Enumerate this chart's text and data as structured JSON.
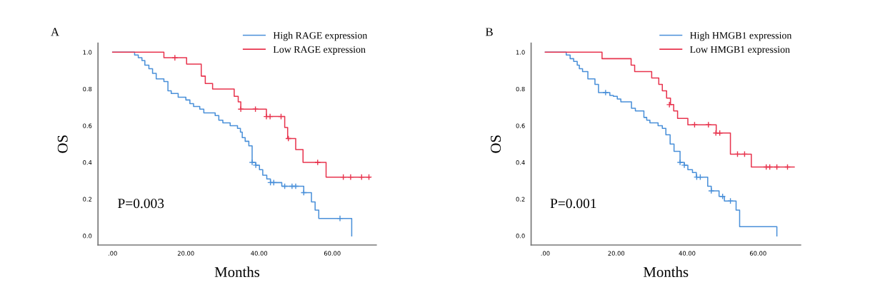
{
  "chart_data": [
    {
      "type": "step",
      "xlabel": "Months",
      "ylabel": "OS",
      "annotations": [
        "A",
        "P=0.003"
      ],
      "xlim": [
        -4,
        72
      ],
      "ylim": [
        -0.05,
        1.05
      ],
      "xticks": [
        {
          "value": 0,
          "label": ".00"
        },
        {
          "value": 20,
          "label": "20.00"
        },
        {
          "value": 40,
          "label": "40.00"
        },
        {
          "value": 60,
          "label": "60.00"
        }
      ],
      "yticks": [
        {
          "value": 0,
          "label": "0.0"
        },
        {
          "value": 0.2,
          "label": "0.2"
        },
        {
          "value": 0.4,
          "label": "0.4"
        },
        {
          "value": 0.6,
          "label": "0.6"
        },
        {
          "value": 0.8,
          "label": "0.8"
        },
        {
          "value": 1.0,
          "label": "1.0"
        }
      ],
      "legend": "top right",
      "grid": false,
      "series": [
        {
          "name": "High RAGE expression",
          "color": "#4a90d9",
          "x": [
            0,
            6.0,
            7.0,
            8.0,
            8.8,
            9.9,
            10.9,
            11.9,
            14.0,
            15.1,
            16.0,
            17.9,
            20.0,
            21.1,
            22.1,
            23.8,
            24.9,
            28.0,
            29.0,
            30.1,
            32.1,
            34.1,
            34.9,
            35.4,
            36.2,
            37.2,
            38.1,
            39.1,
            40.1,
            41.0,
            42.1,
            43.1,
            46.2,
            52.2,
            54.3,
            55.3,
            56.3,
            65.3
          ],
          "values": [
            1.0,
            0.985,
            0.97,
            0.955,
            0.93,
            0.91,
            0.885,
            0.855,
            0.84,
            0.79,
            0.775,
            0.755,
            0.74,
            0.72,
            0.705,
            0.69,
            0.67,
            0.655,
            0.63,
            0.615,
            0.6,
            0.585,
            0.565,
            0.535,
            0.515,
            0.49,
            0.4,
            0.385,
            0.36,
            0.33,
            0.31,
            0.29,
            0.27,
            0.235,
            0.185,
            0.14,
            0.095,
            0.0
          ]
        },
        {
          "name": "Low RAGE expression",
          "color": "#e8344e",
          "x": [
            0,
            14.0,
            20.2,
            24.2,
            25.3,
            27.3,
            33.2,
            34.3,
            35.0,
            42.0,
            47.0,
            47.8,
            50.0,
            52.0,
            58.3,
            70.3
          ],
          "values": [
            1.0,
            0.97,
            0.935,
            0.87,
            0.83,
            0.8,
            0.76,
            0.73,
            0.69,
            0.65,
            0.59,
            0.53,
            0.47,
            0.4,
            0.32,
            0.32
          ]
        },
        {
          "type": "scatter",
          "marker": "cross",
          "color": "#4a90d9",
          "x": [
            38.1,
            39.1,
            43.1,
            44.0,
            47.0,
            49.0,
            50.0,
            52.2,
            62.1
          ],
          "values": [
            0.4,
            0.385,
            0.29,
            0.29,
            0.27,
            0.27,
            0.27,
            0.235,
            0.095
          ]
        },
        {
          "type": "scatter",
          "marker": "cross",
          "color": "#e8344e",
          "x": [
            17.0,
            35.0,
            39.0,
            42.0,
            43.0,
            46.0,
            48.0,
            56.0,
            63.0,
            65.0,
            68.0,
            70.0
          ],
          "values": [
            0.97,
            0.69,
            0.69,
            0.65,
            0.65,
            0.65,
            0.53,
            0.4,
            0.32,
            0.32,
            0.32,
            0.32
          ]
        }
      ]
    },
    {
      "type": "step",
      "xlabel": "Months",
      "ylabel": "OS",
      "annotations": [
        "B",
        "P=0.001"
      ],
      "xlim": [
        -4,
        72
      ],
      "ylim": [
        -0.05,
        1.05
      ],
      "xticks": [
        {
          "value": 0,
          "label": ".00"
        },
        {
          "value": 20,
          "label": "20.00"
        },
        {
          "value": 40,
          "label": "40.00"
        },
        {
          "value": 60,
          "label": "60.00"
        }
      ],
      "yticks": [
        {
          "value": 0,
          "label": "0.0"
        },
        {
          "value": 0.2,
          "label": "0.2"
        },
        {
          "value": 0.4,
          "label": "0.4"
        },
        {
          "value": 0.6,
          "label": "0.6"
        },
        {
          "value": 0.8,
          "label": "0.8"
        },
        {
          "value": 1.0,
          "label": "1.0"
        }
      ],
      "legend": "top right",
      "grid": false,
      "series": [
        {
          "name": "High HMGB1 expression",
          "color": "#4a90d9",
          "x": [
            0,
            5.9,
            7.0,
            8.0,
            9.0,
            9.6,
            10.5,
            12.0,
            14.0,
            15.0,
            18.2,
            19.2,
            20.3,
            21.3,
            24.3,
            25.4,
            27.8,
            28.6,
            29.5,
            31.8,
            33.0,
            34.0,
            35.2,
            36.3,
            38.0,
            39.2,
            40.2,
            41.5,
            42.6,
            45.8,
            46.8,
            49.0,
            50.5,
            53.8,
            54.8,
            65.3
          ],
          "values": [
            1.0,
            0.985,
            0.965,
            0.95,
            0.93,
            0.91,
            0.895,
            0.855,
            0.825,
            0.78,
            0.765,
            0.76,
            0.745,
            0.73,
            0.695,
            0.68,
            0.645,
            0.63,
            0.615,
            0.6,
            0.585,
            0.55,
            0.5,
            0.46,
            0.4,
            0.385,
            0.36,
            0.345,
            0.32,
            0.27,
            0.245,
            0.215,
            0.19,
            0.14,
            0.05,
            0.0
          ]
        },
        {
          "name": "Low HMGB1 expression",
          "color": "#e8344e",
          "x": [
            0,
            16.0,
            24.2,
            25.2,
            30.0,
            32.0,
            33.0,
            34.2,
            35.3,
            36.2,
            37.3,
            40.2,
            48.2,
            52.2,
            58.1,
            70.2
          ],
          "values": [
            1.0,
            0.965,
            0.93,
            0.895,
            0.86,
            0.825,
            0.79,
            0.75,
            0.715,
            0.68,
            0.64,
            0.605,
            0.56,
            0.445,
            0.375,
            0.375
          ]
        },
        {
          "type": "scatter",
          "marker": "cross",
          "color": "#4a90d9",
          "x": [
            17.0,
            38.0,
            39.2,
            42.7,
            43.7,
            46.8,
            50.0,
            52.2
          ],
          "values": [
            0.78,
            0.4,
            0.385,
            0.32,
            0.32,
            0.245,
            0.215,
            0.19
          ]
        },
        {
          "type": "scatter",
          "marker": "cross",
          "color": "#e8344e",
          "x": [
            35.0,
            42.1,
            46.0,
            48.1,
            49.2,
            54.2,
            56.2,
            62.3,
            63.3,
            65.3,
            68.3
          ],
          "values": [
            0.715,
            0.605,
            0.605,
            0.56,
            0.56,
            0.445,
            0.445,
            0.375,
            0.375,
            0.375,
            0.375
          ]
        }
      ]
    }
  ]
}
